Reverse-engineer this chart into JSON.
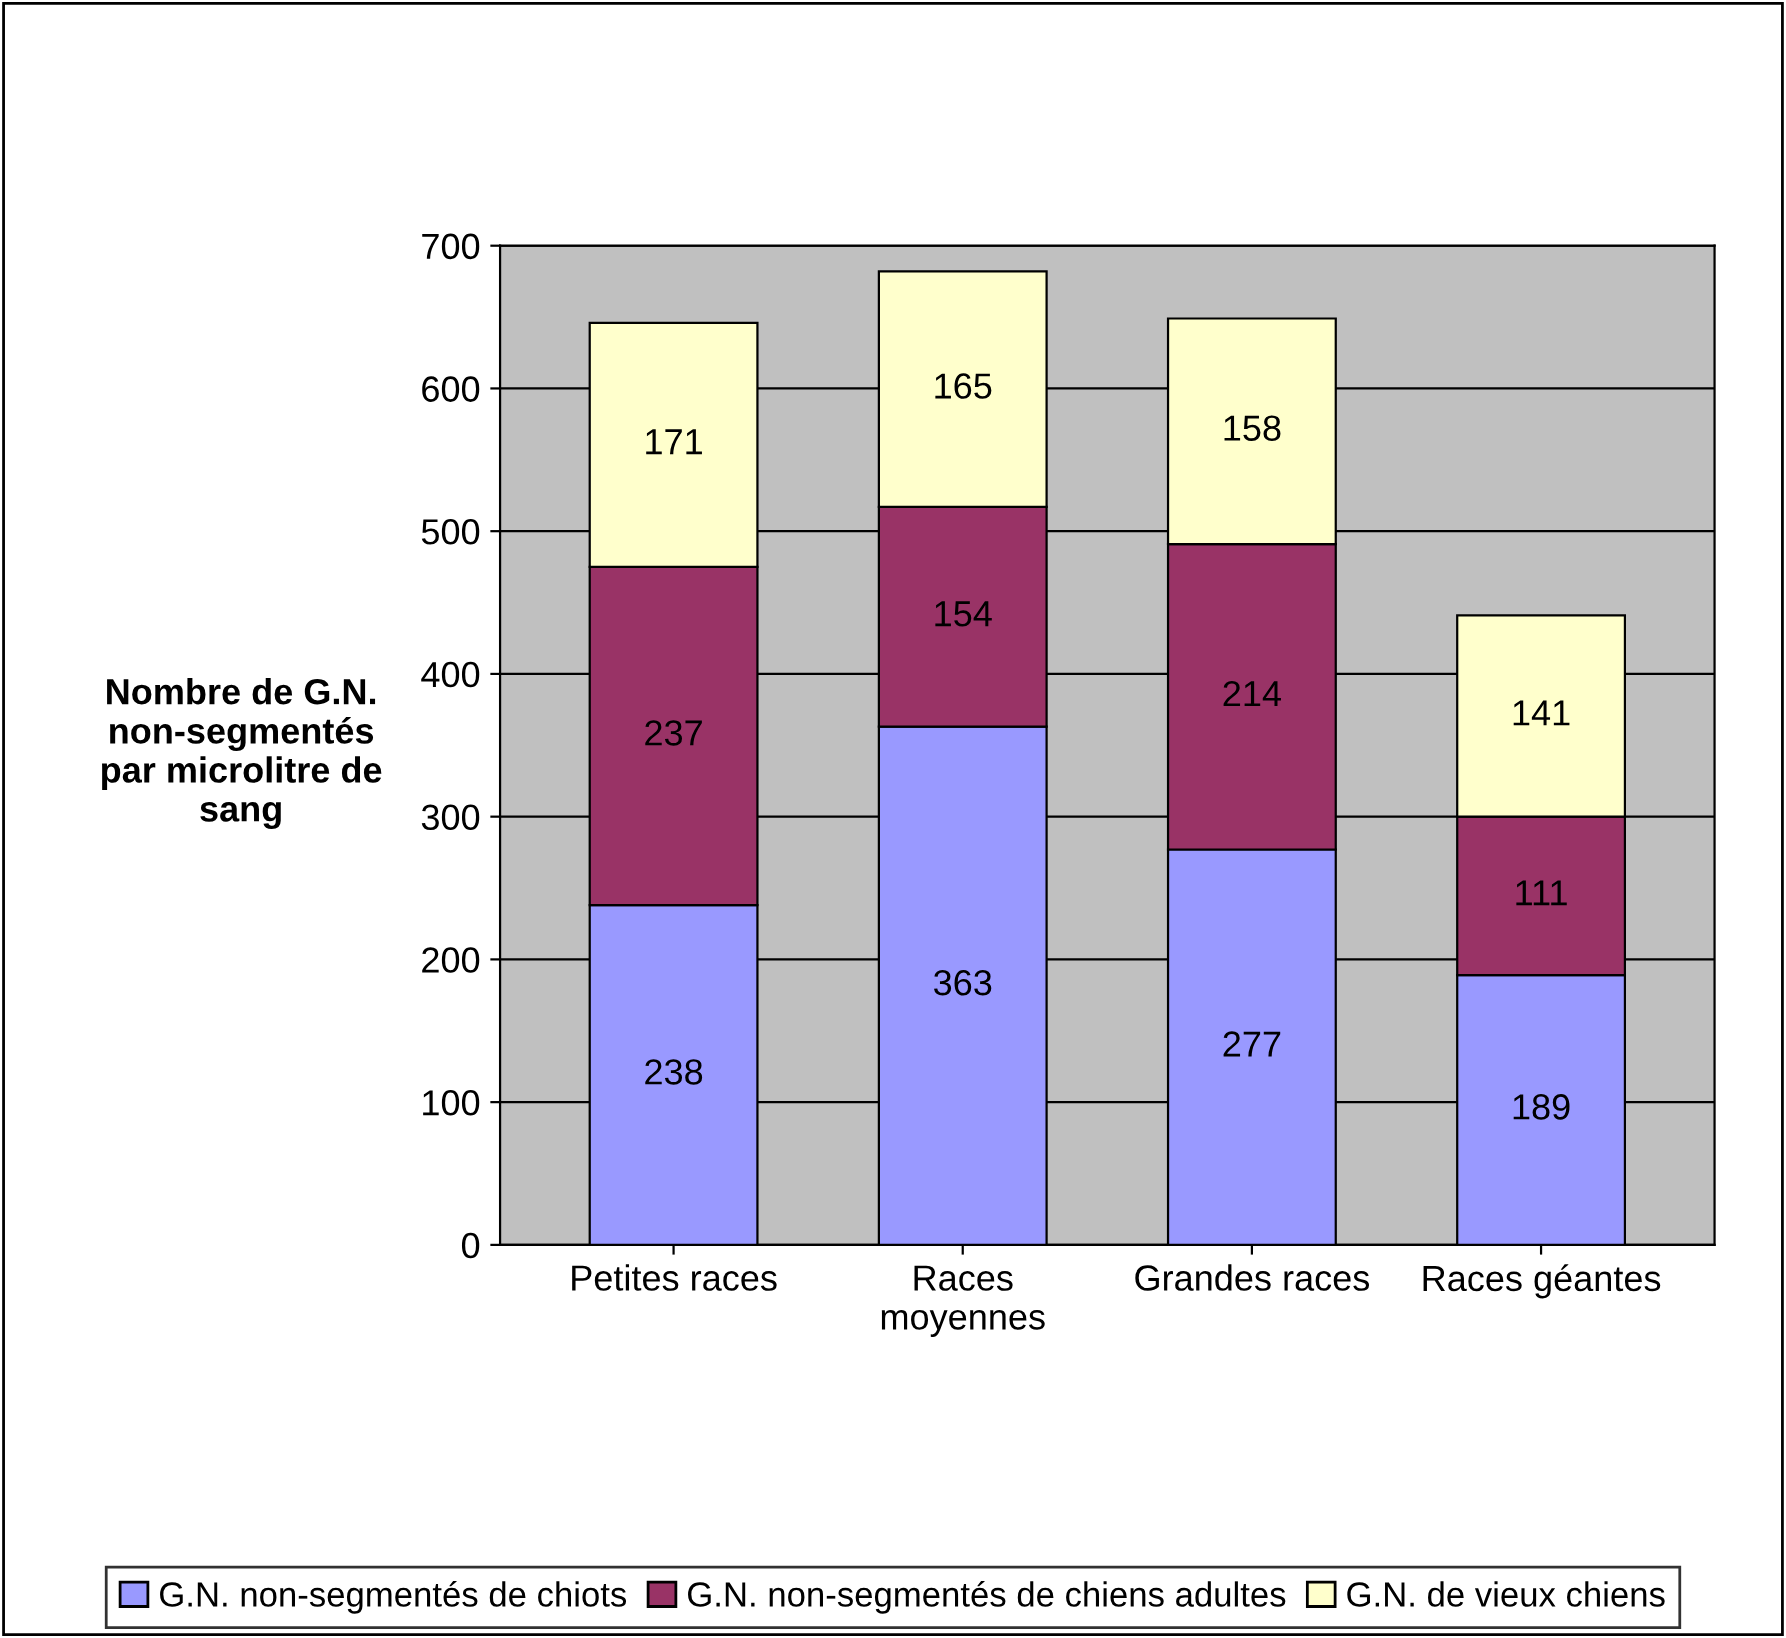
{
  "chart_data": {
    "type": "bar",
    "stacked": true,
    "ylabel": "Nombre de G.N.\nnon-segmentés\npar microlitre de\nsang",
    "categories": [
      "Petites races",
      "Races\nmoyennes",
      "Grandes races",
      "Races géantes"
    ],
    "series": [
      {
        "name": "G.N. non-segmentés de chiots",
        "color": "#9999ff",
        "values": [
          238,
          363,
          277,
          189
        ]
      },
      {
        "name": "G.N. non-segmentés de chiens adultes",
        "color": "#993366",
        "values": [
          237,
          154,
          214,
          111
        ]
      },
      {
        "name": "G.N. de vieux chiens",
        "color": "#ffffcc",
        "values": [
          171,
          165,
          158,
          141
        ]
      }
    ],
    "ylim": [
      0,
      700
    ],
    "yticks": [
      0,
      100,
      200,
      300,
      400,
      500,
      600,
      700
    ],
    "grid": "y",
    "data_labels": true,
    "legend": "bottom"
  }
}
